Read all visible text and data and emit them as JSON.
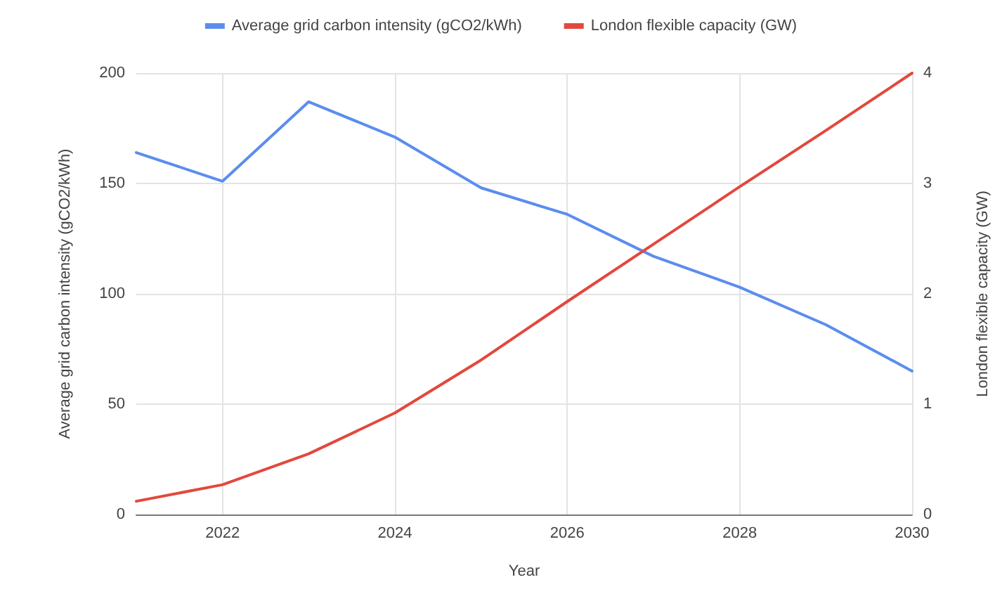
{
  "chart_data": {
    "type": "line",
    "xlabel": "Year",
    "ylabel": "Average grid carbon intensity (gCO2/kWh)",
    "y2label": "London flexible capacity (GW)",
    "x": [
      2021,
      2022,
      2023,
      2024,
      2025,
      2026,
      2027,
      2028,
      2029,
      2030
    ],
    "series": [
      {
        "name": "Average grid carbon intensity (gCO2/kWh)",
        "color": "#5b8def",
        "values": [
          164,
          151,
          187,
          171,
          148,
          136,
          117,
          103,
          86,
          65
        ]
      },
      {
        "name": "London flexible capacity (GW)",
        "color": "#e2483d",
        "axis": "y2",
        "values": [
          0.12,
          0.27,
          0.55,
          0.92,
          1.4,
          1.93,
          2.45,
          2.97,
          3.48,
          4.0
        ]
      }
    ],
    "xlim": [
      2021,
      2030
    ],
    "xticks": [
      2022,
      2024,
      2026,
      2028,
      2030
    ],
    "ylim": [
      0,
      200
    ],
    "yticks": [
      0,
      50,
      100,
      150,
      200
    ],
    "y2lim": [
      0,
      4
    ],
    "y2ticks": [
      0,
      1,
      2,
      3,
      4
    ],
    "grid": true,
    "legend": "top",
    "marker": "none",
    "line_style": "solid"
  }
}
